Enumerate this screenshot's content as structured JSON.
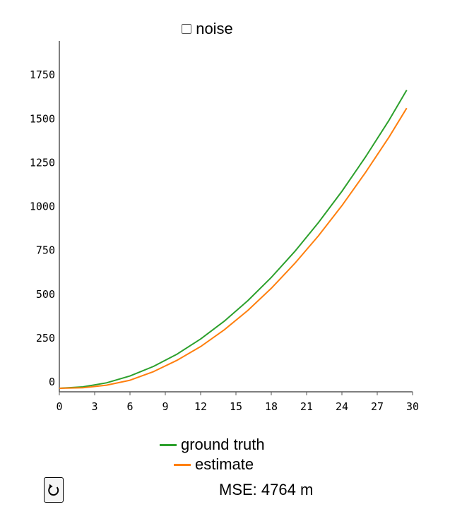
{
  "controls": {
    "noise_label": "noise",
    "noise_checked": false,
    "reset_icon": "reload-icon"
  },
  "mse": {
    "text": "MSE: 4764 m"
  },
  "colors": {
    "ground_truth": "#2ca02c",
    "estimate": "#ff7f0e",
    "axis": "#555555"
  },
  "chart_data": {
    "type": "line",
    "title": "",
    "xlabel": "",
    "ylabel": "",
    "xlim": [
      0,
      30
    ],
    "ylim": [
      -20,
      1980
    ],
    "xticks": [
      0,
      3,
      6,
      9,
      12,
      15,
      18,
      21,
      24,
      27,
      30
    ],
    "yticks": [
      0,
      250,
      500,
      750,
      1000,
      1250,
      1500,
      1750
    ],
    "grid": false,
    "legend_position": "bottom-center",
    "series": [
      {
        "name": "ground truth",
        "x": [
          0,
          2,
          4,
          6,
          8,
          10,
          12,
          14,
          16,
          18,
          20,
          22,
          24,
          26,
          28,
          29.5
        ],
        "y": [
          0,
          8,
          31,
          70,
          125,
          195,
          281,
          382,
          499,
          632,
          780,
          944,
          1123,
          1318,
          1528,
          1700
        ]
      },
      {
        "name": "estimate",
        "x": [
          0,
          2,
          4,
          6,
          8,
          10,
          12,
          14,
          16,
          18,
          20,
          22,
          24,
          26,
          28,
          29.5
        ],
        "y": [
          0,
          3,
          18,
          46,
          95,
          160,
          238,
          333,
          443,
          570,
          712,
          869,
          1041,
          1230,
          1432,
          1597
        ]
      }
    ]
  }
}
